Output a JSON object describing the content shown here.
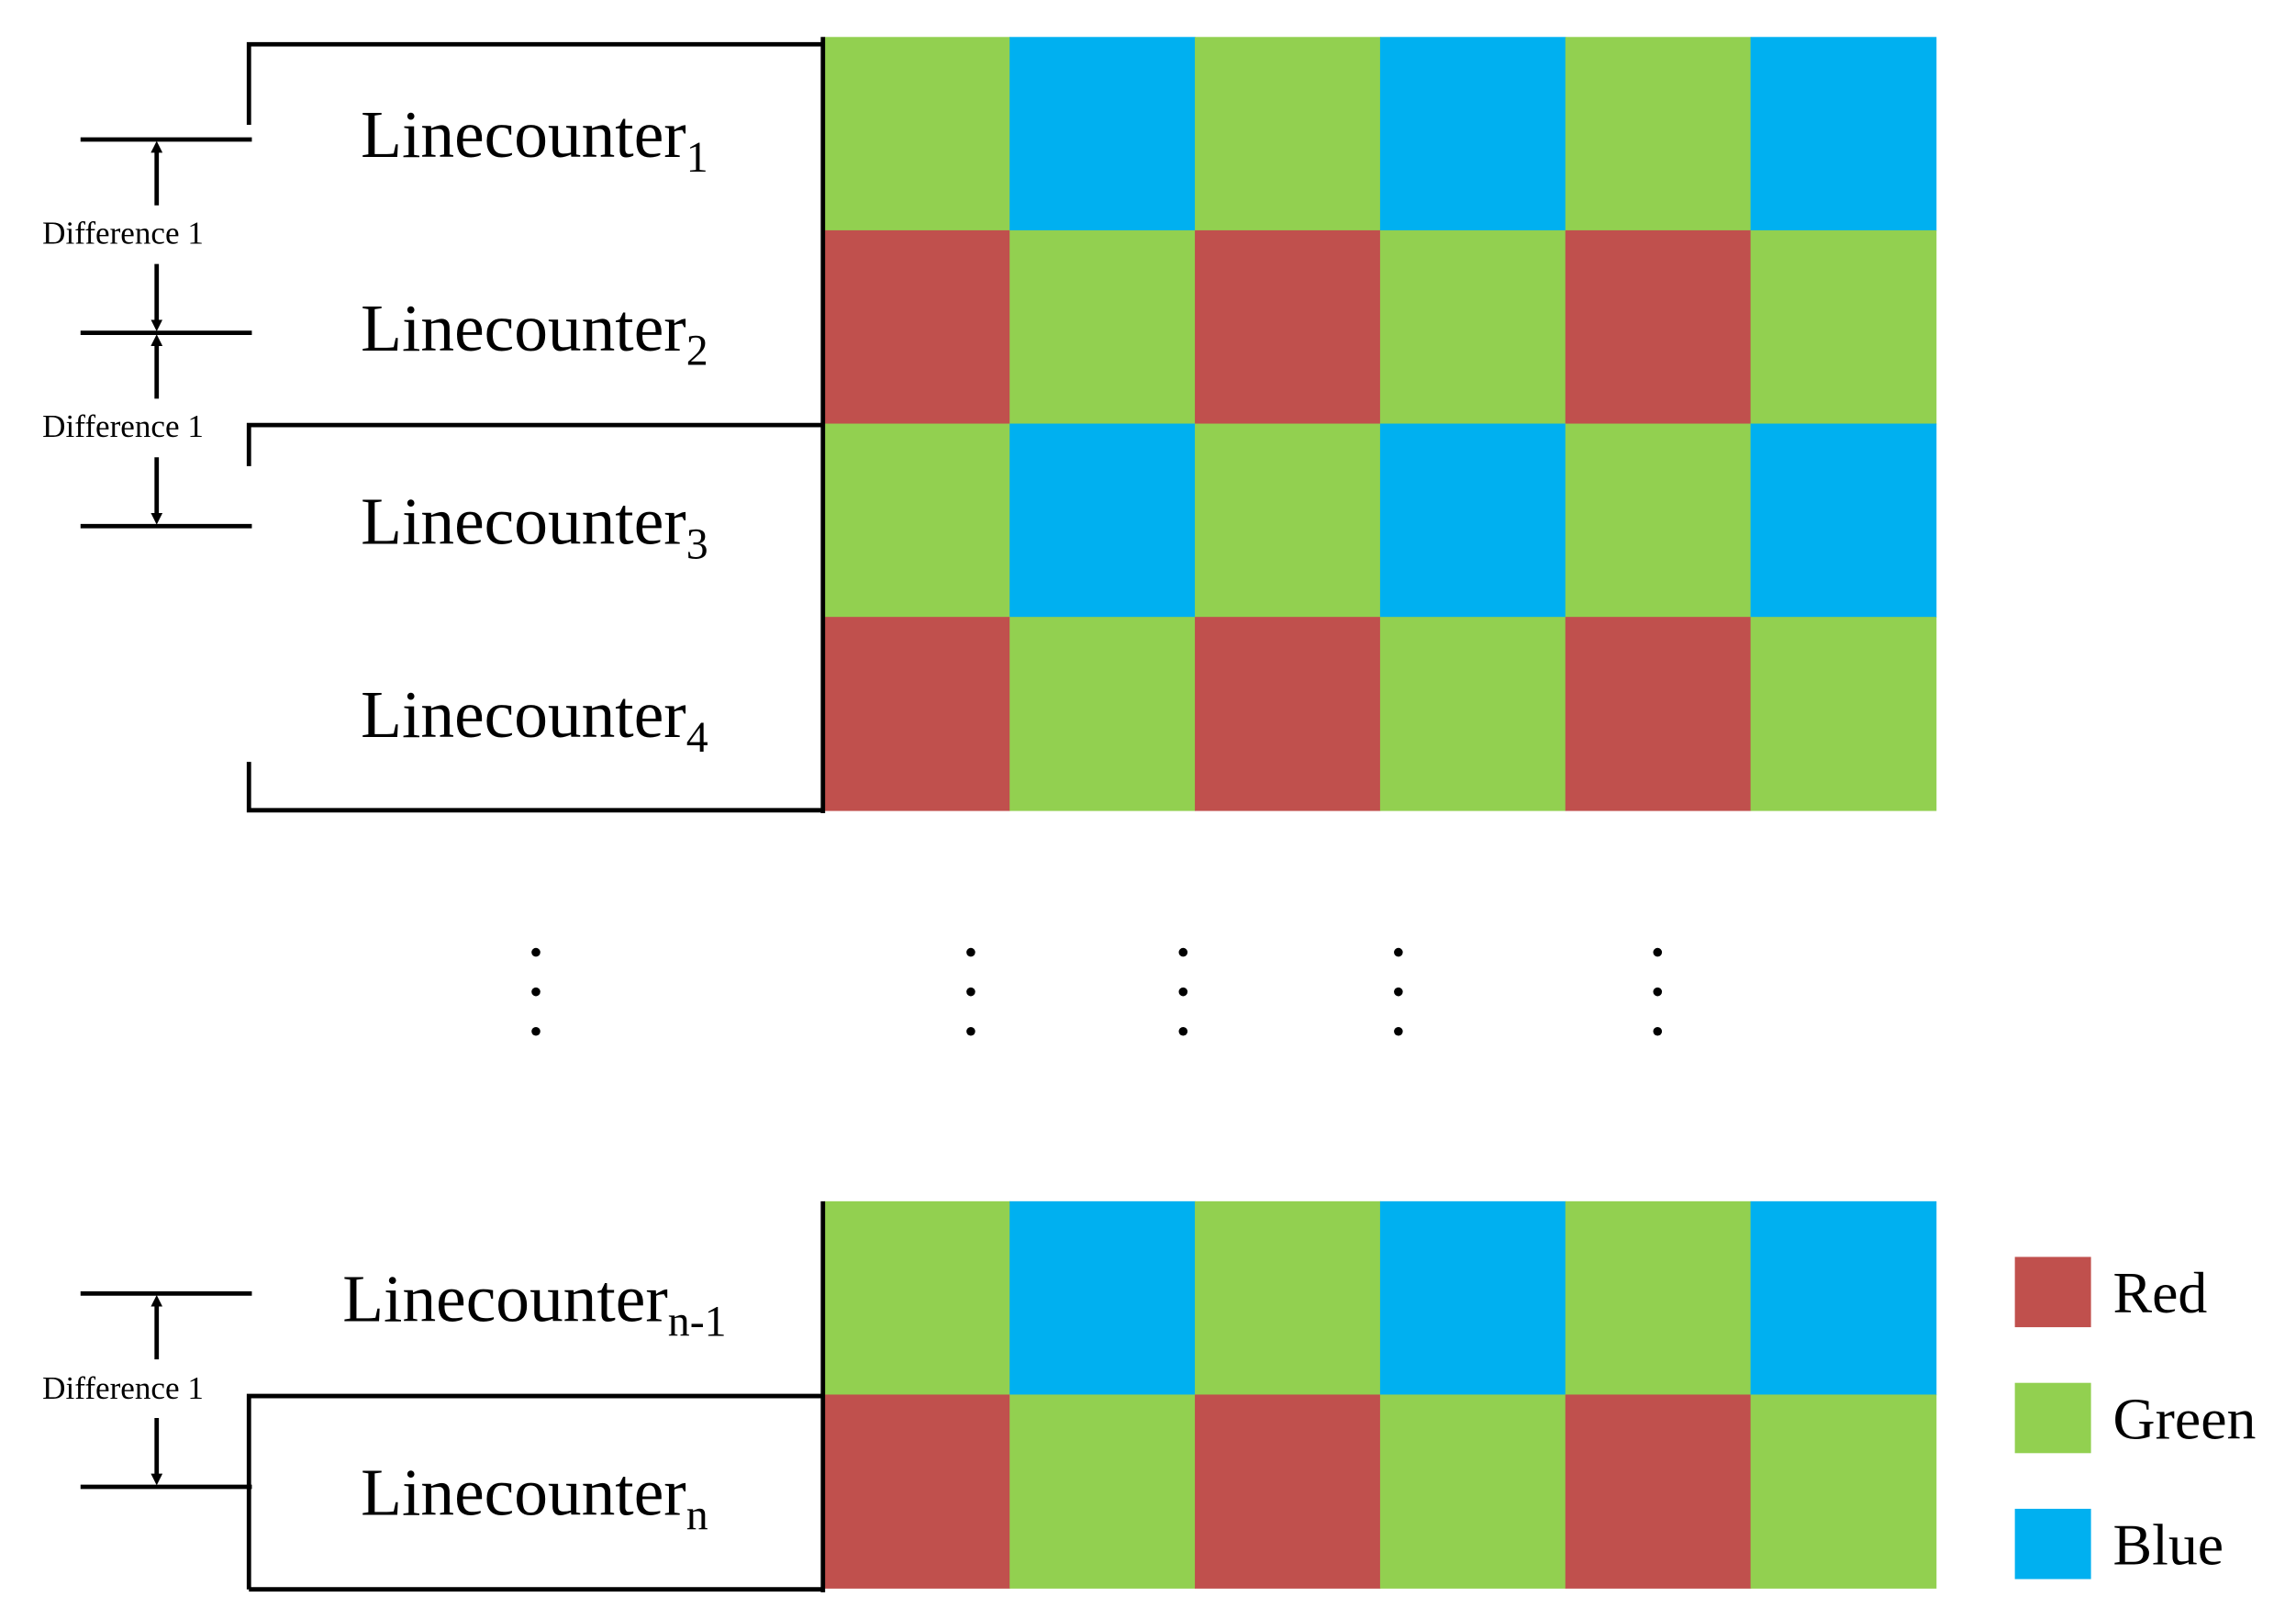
{
  "rows": [
    {
      "label": "Linecounter",
      "subscript": "1"
    },
    {
      "label": "Linecounter",
      "subscript": "2"
    },
    {
      "label": "Linecounter",
      "subscript": "3"
    },
    {
      "label": "Linecounter",
      "subscript": "4"
    },
    {
      "label": "Linecounter",
      "subscript": "n-1"
    },
    {
      "label": "Linecounter",
      "subscript": "n"
    }
  ],
  "differences": [
    "Difference 1",
    "Difference 1",
    "Difference 1"
  ],
  "legend": [
    {
      "name": "Red",
      "color": "#c0504d"
    },
    {
      "name": "Green",
      "color": "#92d050"
    },
    {
      "name": "Blue",
      "color": "#00b0f0"
    }
  ]
}
